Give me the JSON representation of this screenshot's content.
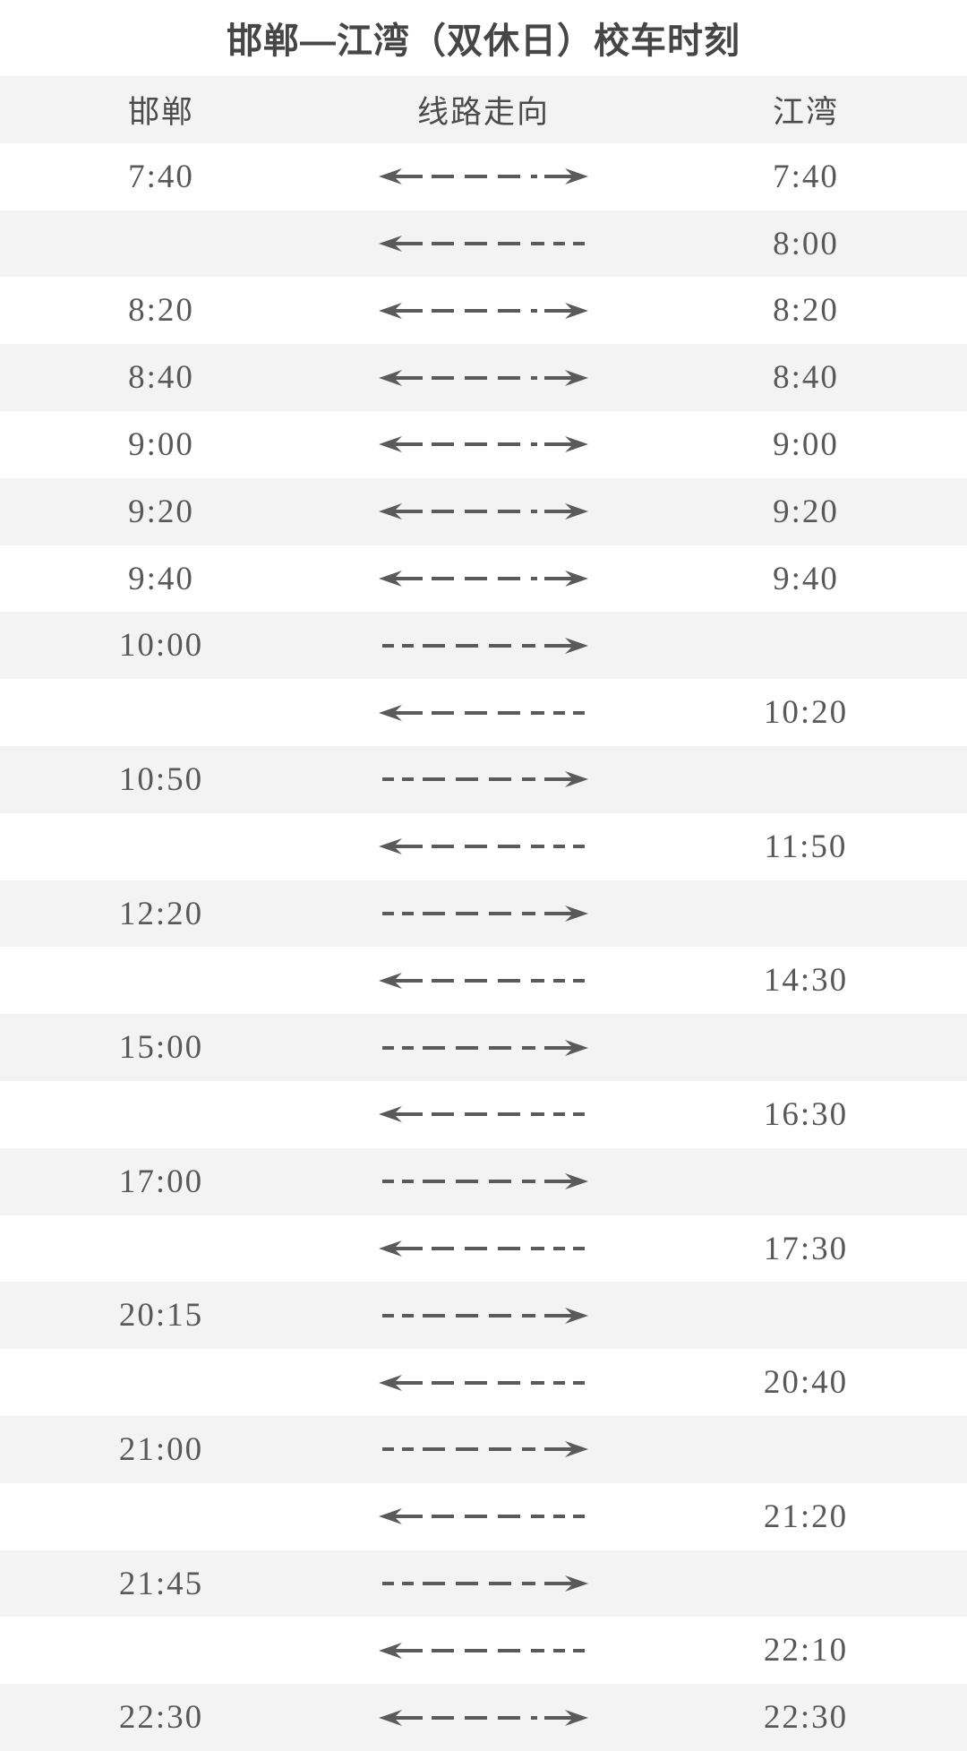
{
  "title": "邯郸—江湾（双休日）校车时刻",
  "colors": {
    "bg": "#ffffff",
    "stripe": "#f3f3f3",
    "text": "#58585a",
    "title": "#464646",
    "header": "#4b4b4d",
    "arrow": "#5a5a5b"
  },
  "icons": {
    "both": "double-headed-dashed-arrow",
    "left": "left-dashed-arrow-with-stub-end",
    "right": "right-dashed-arrow-with-stub-start"
  },
  "table": {
    "columns": [
      {
        "key": "handan",
        "label": "邯郸"
      },
      {
        "key": "route",
        "label": "线路走向"
      },
      {
        "key": "jiangwan",
        "label": "江湾"
      }
    ],
    "rows": [
      {
        "handan": "7:40",
        "direction": "both",
        "jiangwan": "7:40"
      },
      {
        "handan": "",
        "direction": "left",
        "jiangwan": "8:00"
      },
      {
        "handan": "8:20",
        "direction": "both",
        "jiangwan": "8:20"
      },
      {
        "handan": "8:40",
        "direction": "both",
        "jiangwan": "8:40"
      },
      {
        "handan": "9:00",
        "direction": "both",
        "jiangwan": "9:00"
      },
      {
        "handan": "9:20",
        "direction": "both",
        "jiangwan": "9:20"
      },
      {
        "handan": "9:40",
        "direction": "both",
        "jiangwan": "9:40"
      },
      {
        "handan": "10:00",
        "direction": "right",
        "jiangwan": ""
      },
      {
        "handan": "",
        "direction": "left",
        "jiangwan": "10:20"
      },
      {
        "handan": "10:50",
        "direction": "right",
        "jiangwan": ""
      },
      {
        "handan": "",
        "direction": "left",
        "jiangwan": "11:50"
      },
      {
        "handan": "12:20",
        "direction": "right",
        "jiangwan": ""
      },
      {
        "handan": "",
        "direction": "left",
        "jiangwan": "14:30"
      },
      {
        "handan": "15:00",
        "direction": "right",
        "jiangwan": ""
      },
      {
        "handan": "",
        "direction": "left",
        "jiangwan": "16:30"
      },
      {
        "handan": "17:00",
        "direction": "right",
        "jiangwan": ""
      },
      {
        "handan": "",
        "direction": "left",
        "jiangwan": "17:30"
      },
      {
        "handan": "20:15",
        "direction": "right",
        "jiangwan": ""
      },
      {
        "handan": "",
        "direction": "left",
        "jiangwan": "20:40"
      },
      {
        "handan": "21:00",
        "direction": "right",
        "jiangwan": ""
      },
      {
        "handan": "",
        "direction": "left",
        "jiangwan": "21:20"
      },
      {
        "handan": "21:45",
        "direction": "right",
        "jiangwan": ""
      },
      {
        "handan": "",
        "direction": "left",
        "jiangwan": "22:10"
      },
      {
        "handan": "22:30",
        "direction": "both",
        "jiangwan": "22:30"
      }
    ]
  }
}
